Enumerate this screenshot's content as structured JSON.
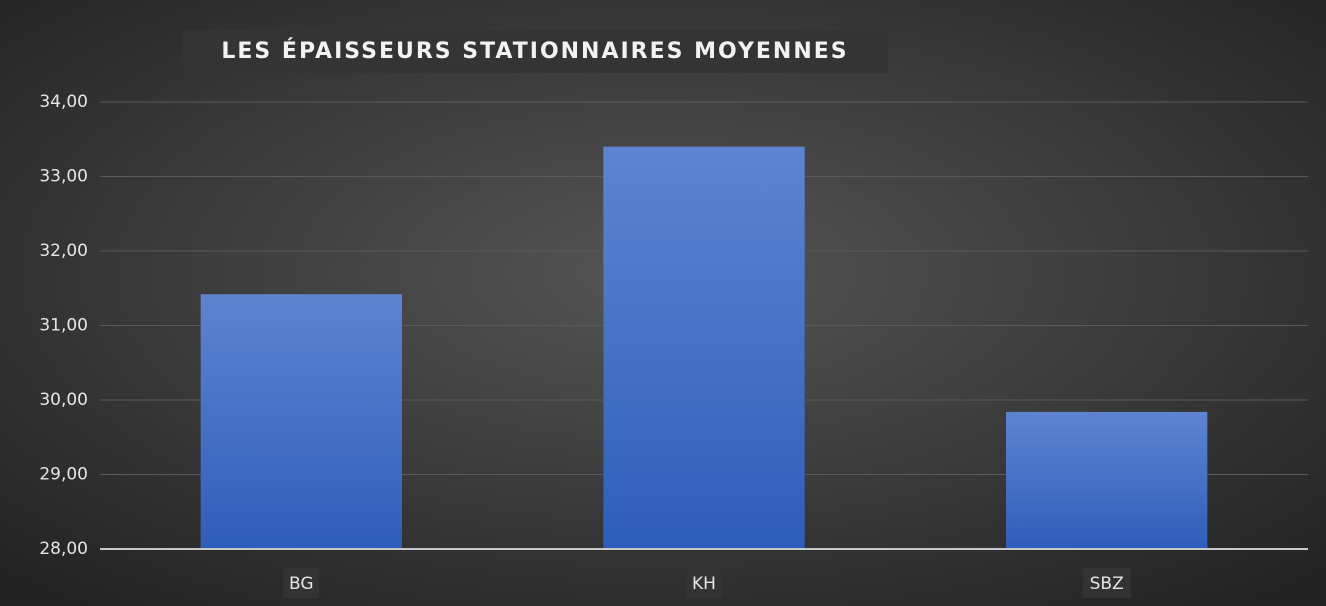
{
  "chart_data": {
    "type": "bar",
    "title": "LES ÉPAISSEURS STATIONNAIRES MOYENNES",
    "categories": [
      "BG",
      "KH",
      "SBZ"
    ],
    "values": [
      31.42,
      33.4,
      29.84
    ],
    "color": "#4472c4",
    "ylim": [
      28,
      34
    ],
    "yticks": [
      {
        "value": 28,
        "label": "28,00"
      },
      {
        "value": 29,
        "label": "29,00"
      },
      {
        "value": 30,
        "label": "30,00"
      },
      {
        "value": 31,
        "label": "31,00"
      },
      {
        "value": 32,
        "label": "32,00"
      },
      {
        "value": 33,
        "label": "33,00"
      },
      {
        "value": 34,
        "label": "34,00"
      }
    ],
    "grid": true
  }
}
